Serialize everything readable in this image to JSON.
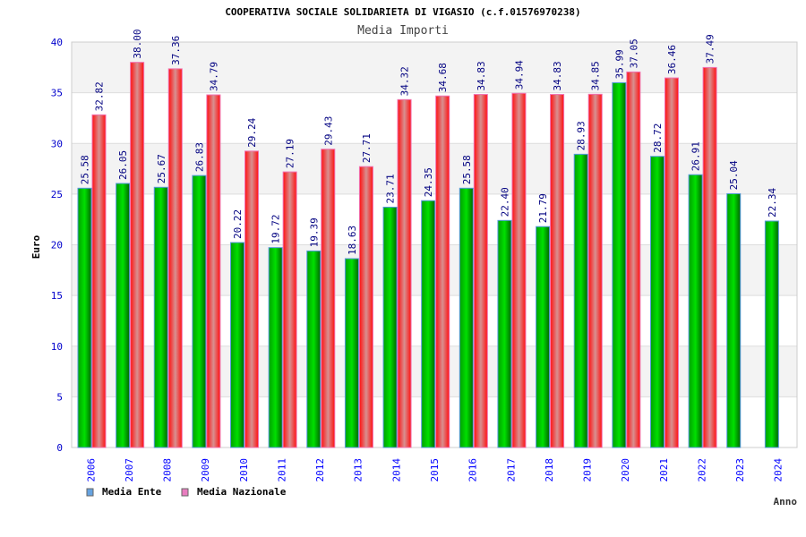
{
  "chart_data": {
    "type": "bar",
    "title": "COOPERATIVA SOCIALE SOLIDARIETA DI VIGASIO (c.f.01576970238)",
    "subtitle": "Media Importi",
    "xlabel": "Anno",
    "ylabel": "Euro",
    "ylim": [
      0,
      40
    ],
    "yticks": [
      "0",
      "5",
      "10",
      "15",
      "20",
      "25",
      "30",
      "35",
      "40"
    ],
    "categories": [
      "2006",
      "2007",
      "2008",
      "2009",
      "2010",
      "2011",
      "2012",
      "2013",
      "2014",
      "2015",
      "2016",
      "2017",
      "2018",
      "2019",
      "2020",
      "2021",
      "2022",
      "2023",
      "2024"
    ],
    "series": [
      {
        "name": "Media Ente",
        "color": "#00aa00",
        "legend_color": "#66a3e0",
        "values": [
          25.58,
          26.05,
          25.67,
          26.83,
          20.22,
          19.72,
          19.39,
          18.63,
          23.71,
          24.35,
          25.58,
          22.4,
          21.79,
          28.93,
          35.99,
          28.72,
          26.91,
          25.04,
          22.34
        ],
        "labels": [
          "25.58",
          "26.05",
          "25.67",
          "26.83",
          "20.22",
          "19.72",
          "19.39",
          "18.63",
          "23.71",
          "24.35",
          "25.58",
          "22.40",
          "21.79",
          "28.93",
          "35.99",
          "28.72",
          "26.91",
          "25.04",
          "22.34"
        ]
      },
      {
        "name": "Media Nazionale",
        "color": "#ff0000",
        "legend_color": "#e87cbf",
        "values": [
          32.82,
          38.0,
          37.36,
          34.79,
          29.24,
          27.19,
          29.43,
          27.71,
          34.32,
          34.68,
          34.83,
          34.94,
          34.83,
          34.85,
          37.05,
          36.46,
          37.49,
          null,
          null
        ],
        "labels": [
          "32.82",
          "38.00",
          "37.36",
          "34.79",
          "29.24",
          "27.19",
          "29.43",
          "27.71",
          "34.32",
          "34.68",
          "34.83",
          "34.94",
          "34.83",
          "34.85",
          "37.05",
          "36.46",
          "37.49",
          null,
          null
        ]
      }
    ],
    "grid": true,
    "legend": "bottom-left"
  }
}
